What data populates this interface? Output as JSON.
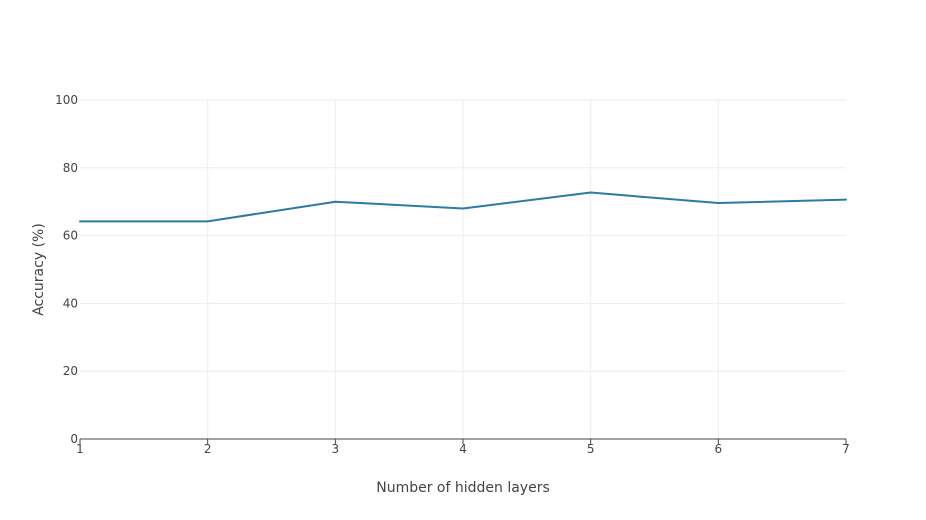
{
  "chart_data": {
    "type": "line",
    "title": "",
    "xlabel": "Number of hidden layers",
    "ylabel": "Accuracy (%)",
    "x": [
      1,
      2,
      3,
      4,
      5,
      6,
      7
    ],
    "xticks": [
      "1",
      "2",
      "3",
      "4",
      "5",
      "6",
      "7"
    ],
    "xlim": [
      1,
      7
    ],
    "ylim": [
      0,
      100
    ],
    "yticks": [
      "0",
      "20",
      "40",
      "60",
      "80",
      "100"
    ],
    "grid": true,
    "legend": "none",
    "series": [
      {
        "values": [
          64.2,
          64.2,
          70.0,
          68.0,
          72.7,
          69.6,
          70.6
        ],
        "color": "#2e7aa6"
      }
    ]
  }
}
